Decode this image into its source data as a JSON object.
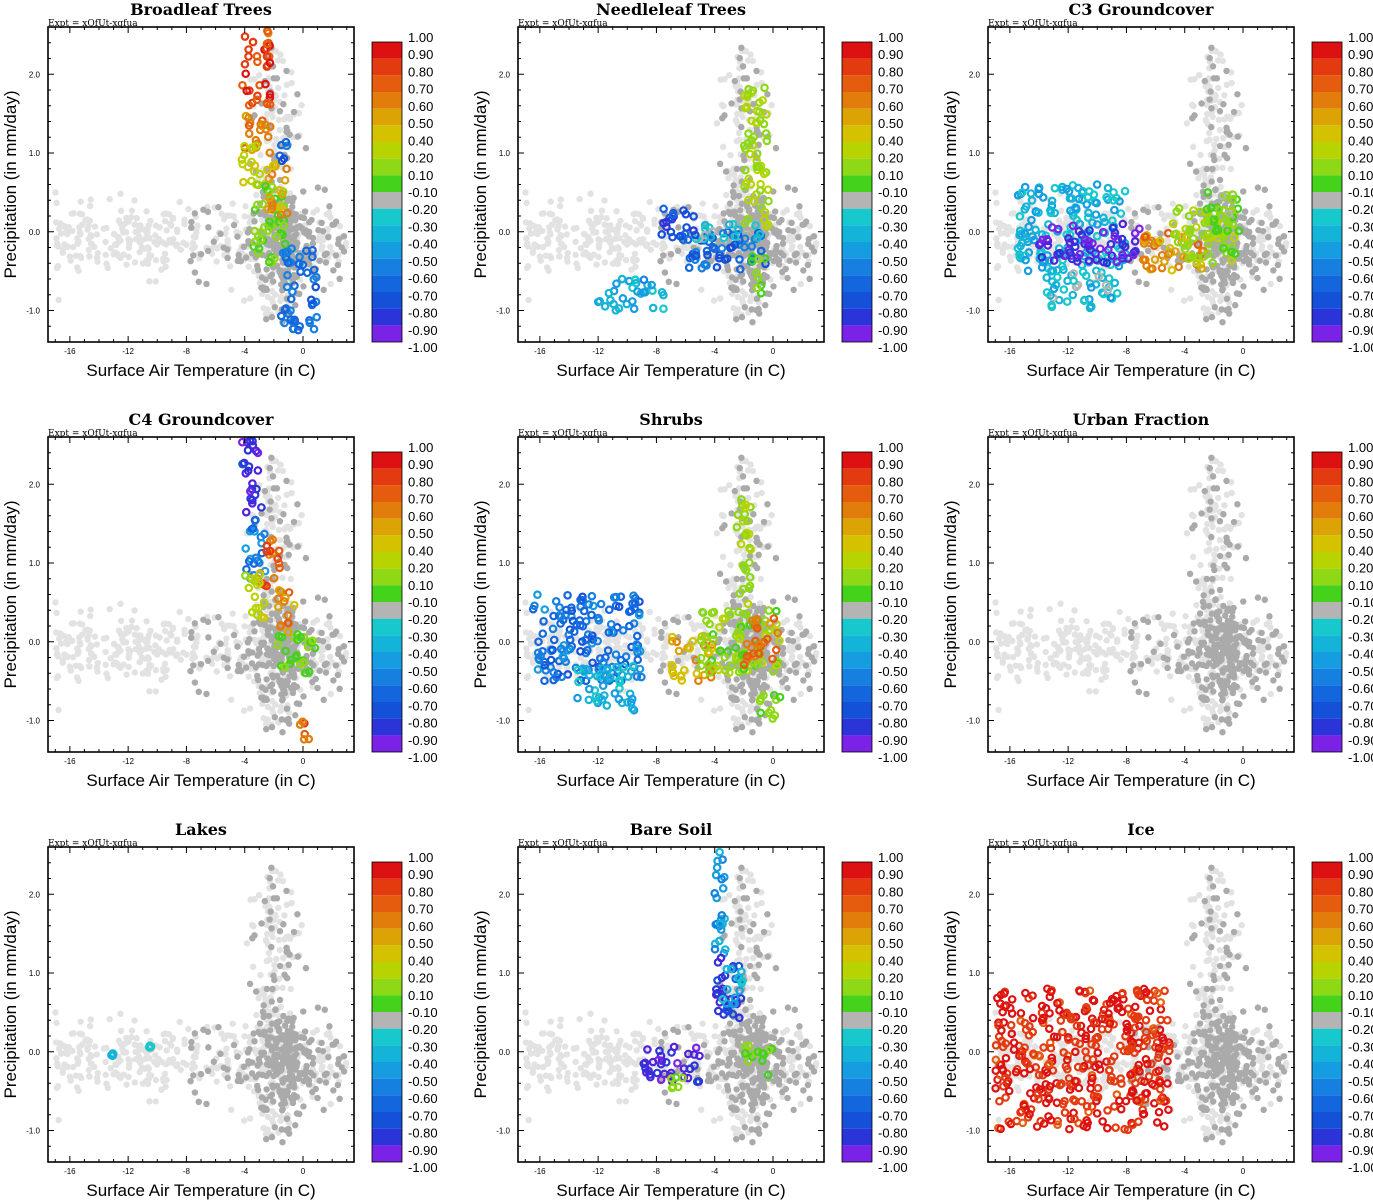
{
  "figure": {
    "expt_label": "Expt = xQfUt-xqfua",
    "xlabel": "Surface Air Temperature (in C)",
    "ylabel": "Precipitation (in mm/day)",
    "xticks": [
      "-16",
      "-12",
      "-8",
      "-4",
      "0"
    ],
    "yticks": [
      "-1.0",
      "0.0",
      "1.0",
      "2.0"
    ],
    "colorbar_labels": [
      "1.00",
      "0.90",
      "0.80",
      "0.70",
      "0.60",
      "0.50",
      "0.40",
      "0.20",
      "0.10",
      "-0.10",
      "-0.20",
      "-0.30",
      "-0.40",
      "-0.50",
      "-0.60",
      "-0.70",
      "-0.80",
      "-0.90",
      "-1.00"
    ],
    "colorbar_colors": [
      "#dd1111",
      "#e33a10",
      "#e65c0e",
      "#e27d0b",
      "#dca305",
      "#d4c200",
      "#b8d400",
      "#8ed815",
      "#44d21a",
      "#b4b4b4",
      "#17c8cc",
      "#14b4d8",
      "#169ce0",
      "#1680e0",
      "#1466de",
      "#1450d8",
      "#2a34d8",
      "#5022dc",
      "#7a22e6"
    ],
    "background_colors": {
      "light": "#e2e2e2",
      "mid": "#aaaaaa"
    }
  },
  "chart_data": [
    {
      "type": "scatter",
      "title": "Broadleaf Trees",
      "xlim": [
        -17.5,
        3.5
      ],
      "ylim": [
        -1.4,
        2.6
      ],
      "highlight": [
        {
          "x_range": [
            -4.2,
            -2.2
          ],
          "y_range": [
            1.6,
            2.55
          ],
          "value": 0.85
        },
        {
          "x_range": [
            -4.0,
            -2.2
          ],
          "y_range": [
            1.0,
            1.6
          ],
          "value": 0.7
        },
        {
          "x_range": [
            -4.2,
            -2.5
          ],
          "y_range": [
            0.6,
            1.1
          ],
          "value": 0.45
        },
        {
          "x_range": [
            -3.5,
            -1.2
          ],
          "y_range": [
            -0.4,
            0.6
          ],
          "value": 0.15
        },
        {
          "x_range": [
            -2.5,
            -1.0
          ],
          "y_range": [
            0.2,
            0.9
          ],
          "value": 0.6
        },
        {
          "x_range": [
            -1.5,
            1.0
          ],
          "y_range": [
            -1.3,
            -0.2
          ],
          "value": -0.55
        },
        {
          "x_range": [
            -1.8,
            -1.0
          ],
          "y_range": [
            0.8,
            1.2
          ],
          "value": -0.6
        }
      ]
    },
    {
      "type": "scatter",
      "title": "Needleleaf Trees",
      "xlim": [
        -17.5,
        3.5
      ],
      "ylim": [
        -1.4,
        2.6
      ],
      "highlight": [
        {
          "x_range": [
            -6.0,
            -0.5
          ],
          "y_range": [
            -0.5,
            0.0
          ],
          "value": -0.6
        },
        {
          "x_range": [
            -12.0,
            -7.5
          ],
          "y_range": [
            -1.0,
            -0.6
          ],
          "value": -0.35
        },
        {
          "x_range": [
            -6.0,
            -0.5
          ],
          "y_range": [
            -0.1,
            0.1
          ],
          "value": -0.2
        },
        {
          "x_range": [
            -2.0,
            -0.3
          ],
          "y_range": [
            0.0,
            1.9
          ],
          "value": 0.3
        },
        {
          "x_range": [
            -1.5,
            -0.5
          ],
          "y_range": [
            -0.8,
            -0.3
          ],
          "value": 0.15
        },
        {
          "x_range": [
            -8.0,
            -5.0
          ],
          "y_range": [
            -0.1,
            0.3
          ],
          "value": -0.7
        }
      ]
    },
    {
      "type": "scatter",
      "title": "C3 Groundcover",
      "xlim": [
        -17.5,
        3.5
      ],
      "ylim": [
        -1.4,
        2.6
      ],
      "highlight": [
        {
          "x_range": [
            -15.5,
            -8.0
          ],
          "y_range": [
            -0.5,
            0.6
          ],
          "value": -0.3
        },
        {
          "x_range": [
            -14.0,
            -7.0
          ],
          "y_range": [
            -0.4,
            0.1
          ],
          "value": -0.9
        },
        {
          "x_range": [
            -13.5,
            -8.5
          ],
          "y_range": [
            -1.0,
            -0.5
          ],
          "value": -0.25
        },
        {
          "x_range": [
            -7.0,
            -2.5
          ],
          "y_range": [
            -0.5,
            0.0
          ],
          "value": 0.65
        },
        {
          "x_range": [
            -5.0,
            -0.5
          ],
          "y_range": [
            -0.4,
            0.3
          ],
          "value": 0.3
        },
        {
          "x_range": [
            -2.5,
            -0.2
          ],
          "y_range": [
            -0.3,
            0.5
          ],
          "value": 0.12
        }
      ]
    },
    {
      "type": "scatter",
      "title": "C4 Groundcover",
      "xlim": [
        -17.5,
        3.5
      ],
      "ylim": [
        -1.4,
        2.6
      ],
      "highlight": [
        {
          "x_range": [
            -4.2,
            -2.8
          ],
          "y_range": [
            1.6,
            2.55
          ],
          "value": -0.85
        },
        {
          "x_range": [
            -4.0,
            -2.5
          ],
          "y_range": [
            0.8,
            1.6
          ],
          "value": -0.5
        },
        {
          "x_range": [
            -3.0,
            -1.5
          ],
          "y_range": [
            0.7,
            1.3
          ],
          "value": 0.8
        },
        {
          "x_range": [
            -4.0,
            -2.5
          ],
          "y_range": [
            0.3,
            0.9
          ],
          "value": 0.4
        },
        {
          "x_range": [
            -1.8,
            -0.5
          ],
          "y_range": [
            0.1,
            0.7
          ],
          "value": 0.65
        },
        {
          "x_range": [
            -2.0,
            1.0
          ],
          "y_range": [
            -0.4,
            0.1
          ],
          "value": 0.15
        },
        {
          "x_range": [
            -0.2,
            0.5
          ],
          "y_range": [
            -1.3,
            -0.9
          ],
          "value": 0.8
        }
      ]
    },
    {
      "type": "scatter",
      "title": "Shrubs",
      "xlim": [
        -17.5,
        3.5
      ],
      "ylim": [
        -1.4,
        2.6
      ],
      "highlight": [
        {
          "x_range": [
            -16.5,
            -9.0
          ],
          "y_range": [
            -0.5,
            0.6
          ],
          "value": -0.55
        },
        {
          "x_range": [
            -13.5,
            -9.5
          ],
          "y_range": [
            -0.9,
            -0.3
          ],
          "value": -0.3
        },
        {
          "x_range": [
            -7.0,
            -4.0
          ],
          "y_range": [
            -0.5,
            0.1
          ],
          "value": 0.6
        },
        {
          "x_range": [
            -5.0,
            0.5
          ],
          "y_range": [
            -0.4,
            0.4
          ],
          "value": 0.2
        },
        {
          "x_range": [
            -2.0,
            0.5
          ],
          "y_range": [
            -0.3,
            0.3
          ],
          "value": 0.75
        },
        {
          "x_range": [
            -2.5,
            -1.5
          ],
          "y_range": [
            0.4,
            1.9
          ],
          "value": 0.3
        },
        {
          "x_range": [
            -1.0,
            0.5
          ],
          "y_range": [
            -1.0,
            -0.6
          ],
          "value": 0.15
        }
      ]
    },
    {
      "type": "scatter",
      "title": "Urban Fraction",
      "xlim": [
        -17.5,
        3.5
      ],
      "ylim": [
        -1.4,
        2.6
      ],
      "highlight": []
    },
    {
      "type": "scatter",
      "title": "Lakes",
      "xlim": [
        -17.5,
        3.5
      ],
      "ylim": [
        -1.4,
        2.6
      ],
      "highlight": [
        {
          "x_range": [
            -13.2,
            -13.0
          ],
          "y_range": [
            -0.05,
            -0.02
          ],
          "value": -0.25
        },
        {
          "x_range": [
            -10.6,
            -10.4
          ],
          "y_range": [
            0.04,
            0.08
          ],
          "value": -0.2
        }
      ]
    },
    {
      "type": "scatter",
      "title": "Bare Soil",
      "xlim": [
        -17.5,
        3.5
      ],
      "ylim": [
        -1.4,
        2.6
      ],
      "highlight": [
        {
          "x_range": [
            -4.0,
            -3.0
          ],
          "y_range": [
            1.2,
            2.55
          ],
          "value": -0.4
        },
        {
          "x_range": [
            -4.0,
            -2.0
          ],
          "y_range": [
            0.4,
            1.2
          ],
          "value": -0.75
        },
        {
          "x_range": [
            -3.5,
            -2.0
          ],
          "y_range": [
            0.6,
            1.1
          ],
          "value": -0.3
        },
        {
          "x_range": [
            -2.0,
            0.0
          ],
          "y_range": [
            -0.3,
            0.1
          ],
          "value": 0.15
        },
        {
          "x_range": [
            -9.0,
            -5.0
          ],
          "y_range": [
            -0.4,
            0.1
          ],
          "value": -0.85
        },
        {
          "x_range": [
            -7.0,
            -6.0
          ],
          "y_range": [
            -0.5,
            -0.3
          ],
          "value": 0.15
        }
      ]
    },
    {
      "type": "scatter",
      "title": "Ice",
      "xlim": [
        -17.5,
        3.5
      ],
      "ylim": [
        -1.4,
        2.6
      ],
      "highlight": [
        {
          "x_range": [
            -17.0,
            -5.0
          ],
          "y_range": [
            -1.0,
            0.8
          ],
          "value": 0.95
        }
      ]
    }
  ]
}
